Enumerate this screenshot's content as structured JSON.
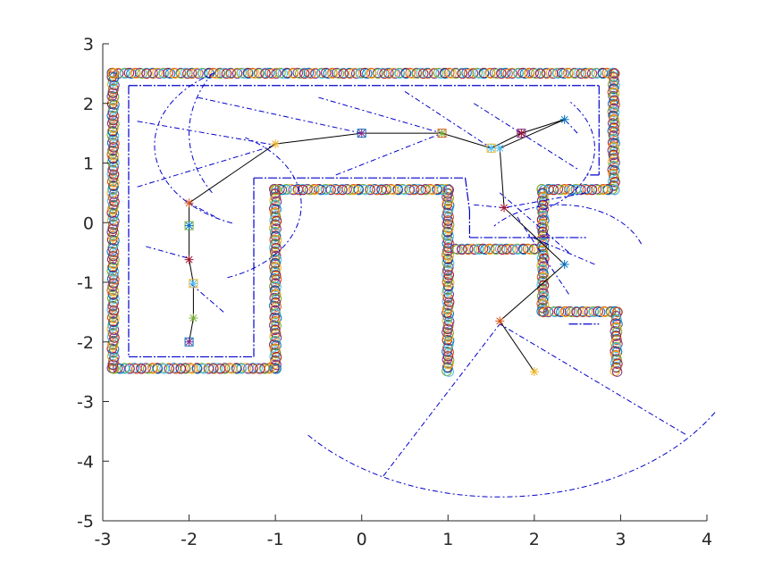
{
  "chart_data": {
    "type": "scatter",
    "title": "",
    "xlabel": "",
    "ylabel": "",
    "xlim": [
      -3,
      4
    ],
    "ylim": [
      -5,
      3
    ],
    "xticks": [
      -3,
      -2,
      -1,
      0,
      1,
      2,
      3,
      4
    ],
    "yticks": [
      -5,
      -4,
      -3,
      -2,
      -1,
      0,
      1,
      2,
      3
    ],
    "grid": false,
    "legend": "none",
    "colors": {
      "axis": "#262626",
      "walls": "#0000cc",
      "path": "#000000",
      "markers": [
        "#0072bd",
        "#d95319",
        "#edb120",
        "#7e2f8e",
        "#77ac30",
        "#4dbeee",
        "#a2142f"
      ]
    },
    "wall_segments": [
      [
        [
          -2.88,
          2.5
        ],
        [
          2.92,
          2.5
        ]
      ],
      [
        [
          2.92,
          2.5
        ],
        [
          2.92,
          0.55
        ]
      ],
      [
        [
          2.92,
          0.55
        ],
        [
          2.1,
          0.55
        ]
      ],
      [
        [
          2.1,
          0.55
        ],
        [
          2.1,
          -1.5
        ]
      ],
      [
        [
          2.1,
          -1.5
        ],
        [
          2.95,
          -1.5
        ]
      ],
      [
        [
          2.95,
          -1.5
        ],
        [
          2.95,
          -2.5
        ]
      ],
      [
        [
          1.0,
          -2.5
        ],
        [
          1.0,
          0.55
        ]
      ],
      [
        [
          1.0,
          0.55
        ],
        [
          -1.0,
          0.55
        ]
      ],
      [
        [
          -1.0,
          0.55
        ],
        [
          -1.0,
          -2.45
        ]
      ],
      [
        [
          -1.0,
          -2.45
        ],
        [
          -2.88,
          -2.45
        ]
      ],
      [
        [
          -2.88,
          -2.45
        ],
        [
          -2.88,
          2.5
        ]
      ],
      [
        [
          1.1,
          -0.45
        ],
        [
          2.0,
          -0.45
        ]
      ]
    ],
    "room_boundary": [
      [
        [
          -2.7,
          2.3
        ],
        [
          2.75,
          2.3
        ]
      ],
      [
        [
          2.75,
          2.3
        ],
        [
          2.75,
          0.8
        ]
      ],
      [
        [
          2.75,
          0.8
        ],
        [
          2.6,
          0.8
        ]
      ],
      [
        [
          -2.7,
          2.3
        ],
        [
          -2.7,
          -2.25
        ]
      ],
      [
        [
          -2.7,
          -2.25
        ],
        [
          -1.25,
          -2.25
        ]
      ],
      [
        [
          -1.25,
          -2.25
        ],
        [
          -1.25,
          0.75
        ]
      ],
      [
        [
          -1.25,
          0.75
        ],
        [
          1.2,
          0.75
        ]
      ],
      [
        [
          1.2,
          0.75
        ],
        [
          1.25,
          0.2
        ]
      ],
      [
        [
          1.25,
          0.2
        ],
        [
          1.25,
          -0.25
        ]
      ],
      [
        [
          1.25,
          -0.25
        ],
        [
          2.6,
          -0.25
        ]
      ],
      [
        [
          2.4,
          -1.7
        ],
        [
          2.75,
          -1.7
        ]
      ]
    ],
    "scan_arcs": [
      {
        "cx": 1.6,
        "cy": -1.7,
        "r": 2.9,
        "a1": -140,
        "a2": -30
      },
      {
        "cx": 0.0,
        "cy": 1.5,
        "r": 2.0,
        "a1": 150,
        "a2": 210
      },
      {
        "cx": -1.0,
        "cy": 1.3,
        "r": 1.4,
        "a1": 120,
        "a2": 250
      },
      {
        "cx": 1.5,
        "cy": 1.25,
        "r": 1.2,
        "a1": -60,
        "a2": 40
      },
      {
        "cx": -2.0,
        "cy": 0.3,
        "r": 1.3,
        "a1": -70,
        "a2": 60
      },
      {
        "cx": 2.3,
        "cy": -0.7,
        "r": 1.0,
        "a1": 20,
        "a2": 140
      }
    ],
    "scan_rays": [
      [
        [
          -2.6,
          1.7
        ],
        [
          -1.0,
          1.3
        ]
      ],
      [
        [
          -2.6,
          0.6
        ],
        [
          -1.0,
          1.3
        ]
      ],
      [
        [
          -1.9,
          2.1
        ],
        [
          0.0,
          1.5
        ]
      ],
      [
        [
          -1.7,
          0.1
        ],
        [
          -2.0,
          0.33
        ]
      ],
      [
        [
          -2.5,
          -0.4
        ],
        [
          -2.0,
          -0.6
        ]
      ],
      [
        [
          -1.6,
          -1.5
        ],
        [
          -2.0,
          -1.0
        ]
      ],
      [
        [
          -0.5,
          2.1
        ],
        [
          0.93,
          1.5
        ]
      ],
      [
        [
          -0.3,
          0.8
        ],
        [
          0.93,
          1.5
        ]
      ],
      [
        [
          0.5,
          2.2
        ],
        [
          1.5,
          1.25
        ]
      ],
      [
        [
          1.3,
          0.3
        ],
        [
          1.65,
          0.25
        ]
      ],
      [
        [
          2.5,
          1.5
        ],
        [
          2.35,
          1.73
        ]
      ],
      [
        [
          2.6,
          0.5
        ],
        [
          1.65,
          0.25
        ]
      ],
      [
        [
          2.4,
          -0.5
        ],
        [
          1.6,
          0.5
        ]
      ],
      [
        [
          2.4,
          -1.2
        ],
        [
          1.8,
          0.1
        ]
      ],
      [
        [
          0.25,
          -4.25
        ],
        [
          1.6,
          -1.7
        ]
      ],
      [
        [
          3.75,
          -3.55
        ],
        [
          1.6,
          -1.7
        ]
      ],
      [
        [
          2.7,
          -0.7
        ],
        [
          1.9,
          -0.2
        ]
      ],
      [
        [
          1.3,
          2.0
        ],
        [
          2.5,
          0.9
        ]
      ]
    ],
    "trajectory": [
      {
        "x": -2.0,
        "y": -2.0
      },
      {
        "x": -1.95,
        "y": -1.6
      },
      {
        "x": -1.95,
        "y": -1.02
      },
      {
        "x": -2.0,
        "y": -0.62
      },
      {
        "x": -2.0,
        "y": -0.05
      },
      {
        "x": -2.0,
        "y": 0.33
      },
      {
        "x": -1.0,
        "y": 1.32
      },
      {
        "x": 0.0,
        "y": 1.5
      },
      {
        "x": 0.93,
        "y": 1.5
      },
      {
        "x": 1.5,
        "y": 1.25
      },
      {
        "x": 1.85,
        "y": 1.5
      },
      {
        "x": 2.35,
        "y": 1.73
      }
    ],
    "trajectory_ticks": [
      {
        "x": -2.0,
        "y": -2.0,
        "m": "square"
      },
      {
        "x": -1.95,
        "y": -1.6,
        "m": "star"
      },
      {
        "x": -1.95,
        "y": -1.02,
        "m": "square"
      },
      {
        "x": -2.0,
        "y": -0.62,
        "m": "star"
      },
      {
        "x": -2.0,
        "y": -0.05,
        "m": "square"
      },
      {
        "x": -2.0,
        "y": 0.33,
        "m": "star"
      },
      {
        "x": -1.0,
        "y": 1.32,
        "m": "star"
      },
      {
        "x": 0.0,
        "y": 1.5,
        "m": "square"
      },
      {
        "x": 0.93,
        "y": 1.5,
        "m": "square"
      },
      {
        "x": 1.5,
        "y": 1.25,
        "m": "square"
      },
      {
        "x": 1.85,
        "y": 1.5,
        "m": "square"
      },
      {
        "x": 2.35,
        "y": 1.73,
        "m": "star"
      }
    ],
    "trajectory2": [
      {
        "x": 2.35,
        "y": 1.73
      },
      {
        "x": 1.6,
        "y": 1.25
      },
      {
        "x": 1.65,
        "y": 0.25
      },
      {
        "x": 2.35,
        "y": -0.7
      },
      {
        "x": 1.6,
        "y": -1.65
      },
      {
        "x": 2.0,
        "y": -2.5
      }
    ],
    "trajectory2_ticks": [
      {
        "x": 1.6,
        "y": 1.25,
        "m": "star"
      },
      {
        "x": 1.65,
        "y": 0.25,
        "m": "star"
      },
      {
        "x": 2.35,
        "y": -0.7,
        "m": "star"
      },
      {
        "x": 1.6,
        "y": -1.65,
        "m": "star"
      },
      {
        "x": 2.0,
        "y": -2.5,
        "m": "star"
      }
    ]
  }
}
